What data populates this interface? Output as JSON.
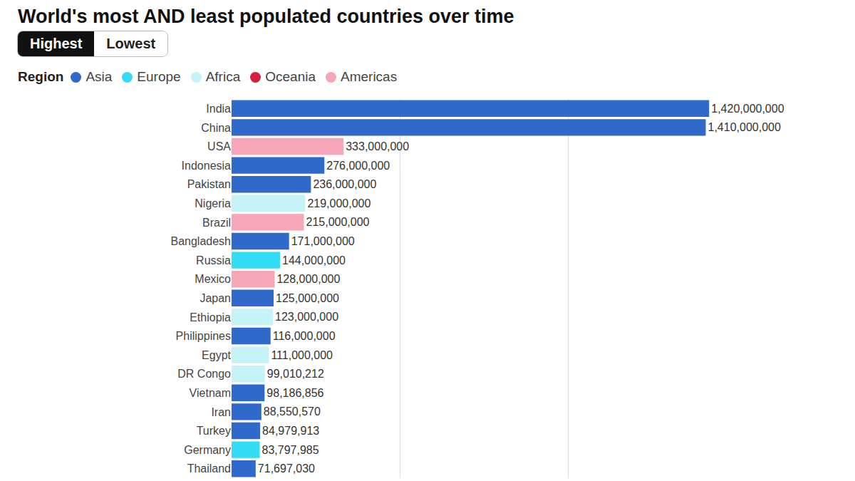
{
  "chart_data": {
    "type": "bar",
    "title": "World's most AND least populated countries over time",
    "toggle": {
      "options": [
        "Highest",
        "Lowest"
      ],
      "selected": "Highest"
    },
    "legend_title": "Region",
    "legend": "top left",
    "orientation": "horizontal",
    "data_labels": true,
    "grid": true,
    "tick_labels": "y",
    "xlim": [
      0,
      1500000000
    ],
    "xticks": [
      0,
      500000000,
      1000000000,
      1500000000
    ],
    "categories": [
      "India",
      "China",
      "USA",
      "Indonesia",
      "Pakistan",
      "Nigeria",
      "Brazil",
      "Bangladesh",
      "Russia",
      "Mexico",
      "Japan",
      "Ethiopia",
      "Philippines",
      "Egypt",
      "DR Congo",
      "Vietnam",
      "Iran",
      "Turkey",
      "Germany",
      "Thailand"
    ],
    "series": [
      {
        "name": "Asia",
        "color": "#2f69c9",
        "values": [
          1420000000,
          1410000000,
          null,
          276000000,
          236000000,
          null,
          null,
          171000000,
          null,
          null,
          125000000,
          null,
          116000000,
          null,
          null,
          98186856,
          88550570,
          84979913,
          null,
          71697030
        ],
        "value_labels": [
          "1,420,000,000",
          "1,410,000,000",
          null,
          "276,000,000",
          "236,000,000",
          null,
          null,
          "171,000,000",
          null,
          null,
          "125,000,000",
          null,
          "116,000,000",
          null,
          null,
          "98,186,856",
          "88,550,570",
          "84,979,913",
          null,
          "71,697,030"
        ]
      },
      {
        "name": "Europe",
        "color": "#33dcf5",
        "values": [
          null,
          null,
          null,
          null,
          null,
          null,
          null,
          null,
          144000000,
          null,
          null,
          null,
          null,
          null,
          null,
          null,
          null,
          null,
          83797985,
          null
        ],
        "value_labels": [
          null,
          null,
          null,
          null,
          null,
          null,
          null,
          null,
          "144,000,000",
          null,
          null,
          null,
          null,
          null,
          null,
          null,
          null,
          null,
          "83,797,985",
          null
        ]
      },
      {
        "name": "Africa",
        "color": "#c6f3f7",
        "values": [
          null,
          null,
          null,
          null,
          null,
          219000000,
          null,
          null,
          null,
          null,
          null,
          123000000,
          null,
          111000000,
          99010212,
          null,
          null,
          null,
          null,
          null
        ],
        "value_labels": [
          null,
          null,
          null,
          null,
          null,
          "219,000,000",
          null,
          null,
          null,
          null,
          null,
          "123,000,000",
          null,
          "111,000,000",
          "99,010,212",
          null,
          null,
          null,
          null,
          null
        ]
      },
      {
        "name": "Oceania",
        "color": "#d71f3b",
        "values": [
          null,
          null,
          null,
          null,
          null,
          null,
          null,
          null,
          null,
          null,
          null,
          null,
          null,
          null,
          null,
          null,
          null,
          null,
          null,
          null
        ],
        "value_labels": [
          null,
          null,
          null,
          null,
          null,
          null,
          null,
          null,
          null,
          null,
          null,
          null,
          null,
          null,
          null,
          null,
          null,
          null,
          null,
          null
        ]
      },
      {
        "name": "Americas",
        "color": "#f5a6b9",
        "values": [
          null,
          null,
          333000000,
          null,
          null,
          null,
          215000000,
          null,
          null,
          128000000,
          null,
          null,
          null,
          null,
          null,
          null,
          null,
          null,
          null,
          null
        ],
        "value_labels": [
          null,
          null,
          "333,000,000",
          null,
          null,
          null,
          "215,000,000",
          null,
          null,
          "128,000,000",
          null,
          null,
          null,
          null,
          null,
          null,
          null,
          null,
          null,
          null
        ]
      }
    ]
  }
}
